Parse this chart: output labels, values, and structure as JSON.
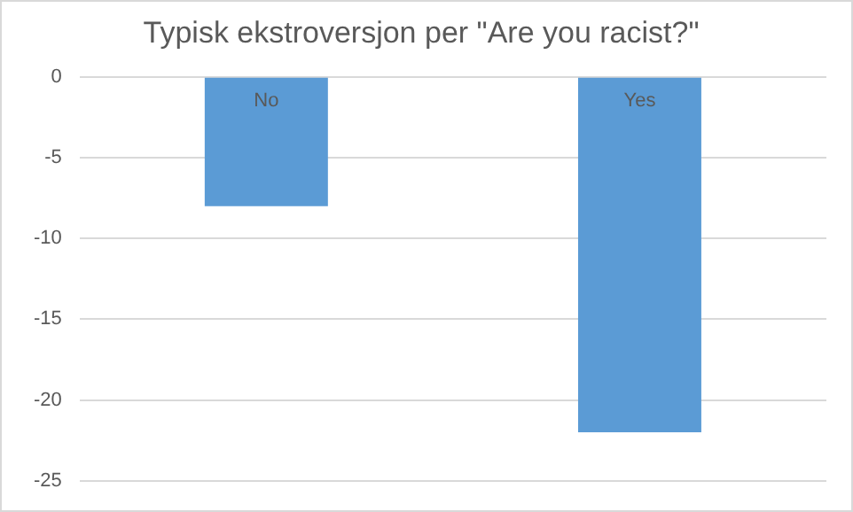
{
  "chart_data": {
    "type": "bar",
    "title": "Typisk ekstroversjon per \"Are you racist?\"",
    "categories": [
      "No",
      "Yes"
    ],
    "values": [
      -8,
      -22
    ],
    "color": "#5b9bd5",
    "ylim": [
      -25,
      0
    ],
    "yticks": [
      -25,
      -20,
      -15,
      -10,
      -5,
      0
    ],
    "grid": "y"
  }
}
